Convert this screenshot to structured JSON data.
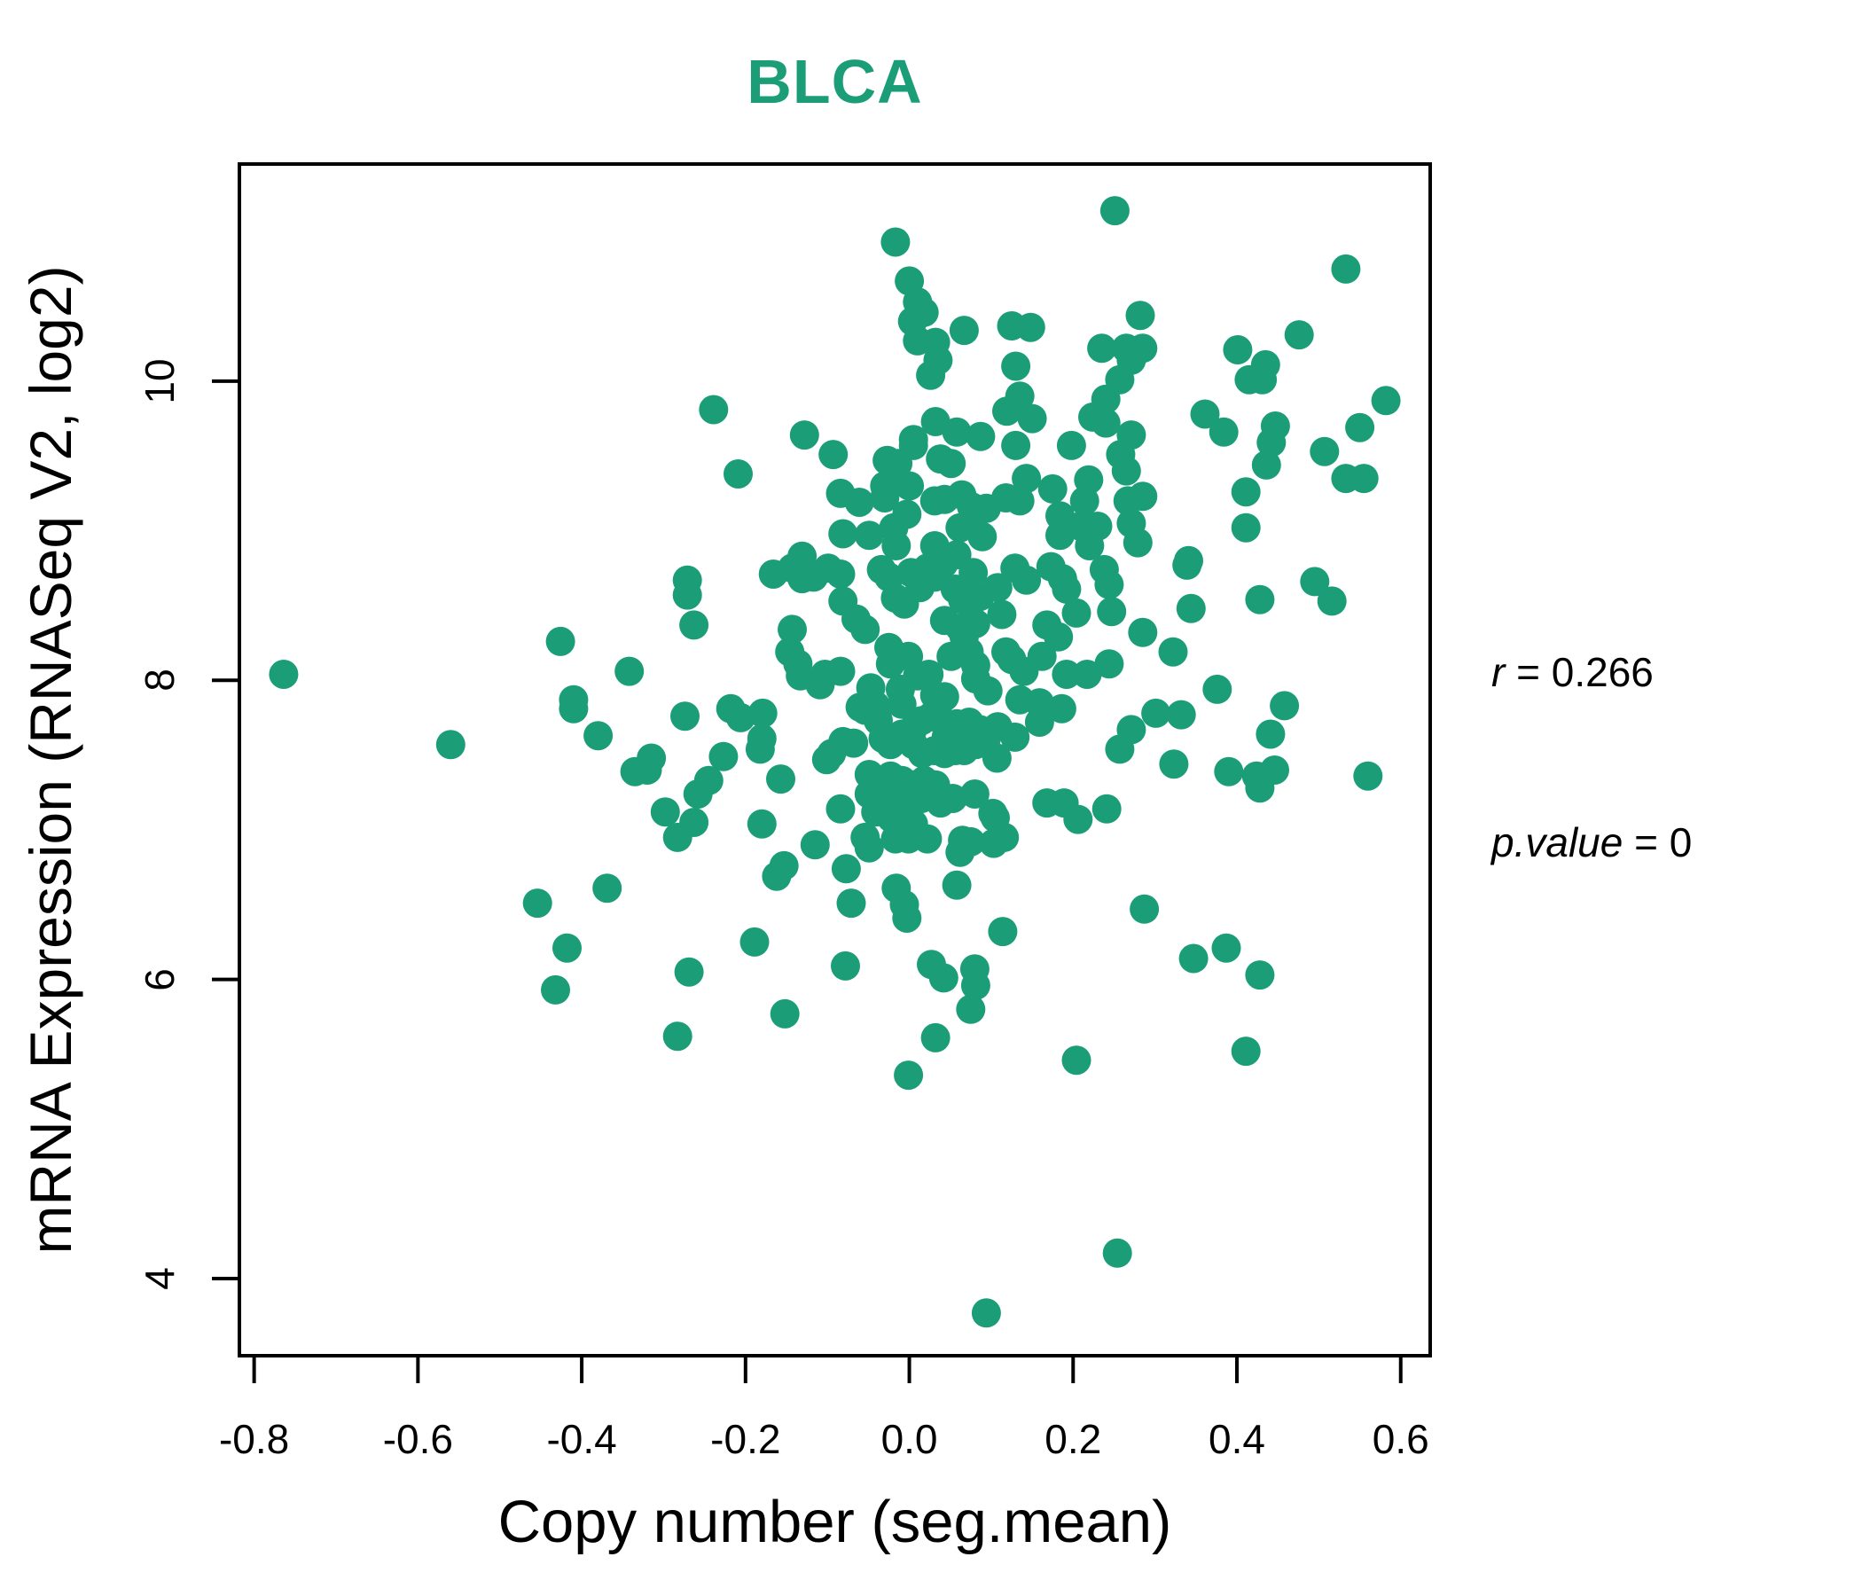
{
  "colors": {
    "accent_green": "#1B9E77",
    "axis_black": "#000000"
  },
  "annotation": {
    "r_label": "r",
    "r_eq": " = 0.266",
    "p_label": "p.value",
    "p_eq": " = 0"
  },
  "chart_data": {
    "type": "scatter",
    "title": "BLCA",
    "xlabel": "Copy number (seg.mean)",
    "ylabel": "mRNA Expression (RNASeq V2, log2)",
    "xlim": [
      -0.818,
      0.636
    ],
    "ylim": [
      3.484,
      11.452
    ],
    "x_ticks": [
      {
        "value": -0.8,
        "label": "-0.8"
      },
      {
        "value": -0.6,
        "label": "-0.6"
      },
      {
        "value": -0.4,
        "label": "-0.4"
      },
      {
        "value": -0.2,
        "label": "-0.2"
      },
      {
        "value": 0.0,
        "label": "0.0"
      },
      {
        "value": 0.2,
        "label": "0.2"
      },
      {
        "value": 0.4,
        "label": "0.4"
      },
      {
        "value": 0.6,
        "label": "0.6"
      }
    ],
    "y_ticks": [
      {
        "value": 4,
        "label": "4"
      },
      {
        "value": 6,
        "label": "6"
      },
      {
        "value": 8,
        "label": "8"
      },
      {
        "value": 10,
        "label": "10"
      }
    ],
    "grid": false,
    "legend_position": "none",
    "point_color": "#1B9E77",
    "point_radius_px": 16.5,
    "annotations_text": [
      "r = 0.266",
      "p.value = 0"
    ],
    "points": [
      [
        -0.017,
        10.93
      ],
      [
        0.0,
        10.67
      ],
      [
        0.01,
        10.53
      ],
      [
        0.018,
        10.46
      ],
      [
        0.004,
        10.4
      ],
      [
        0.01,
        10.27
      ],
      [
        0.032,
        10.26
      ],
      [
        0.067,
        10.34
      ],
      [
        0.125,
        10.37
      ],
      [
        0.148,
        10.36
      ],
      [
        0.035,
        10.14
      ],
      [
        0.026,
        10.04
      ],
      [
        0.13,
        10.1
      ],
      [
        0.135,
        9.9
      ],
      [
        0.119,
        9.8
      ],
      [
        0.15,
        9.75
      ],
      [
        -0.239,
        9.81
      ],
      [
        -0.128,
        9.64
      ],
      [
        -0.093,
        9.51
      ],
      [
        -0.209,
        9.38
      ],
      [
        0.005,
        9.61
      ],
      [
        0.032,
        9.73
      ],
      [
        0.058,
        9.66
      ],
      [
        0.087,
        9.63
      ],
      [
        0.005,
        9.57
      ],
      [
        0.038,
        9.48
      ],
      [
        0.051,
        9.45
      ],
      [
        -0.027,
        9.47
      ],
      [
        -0.014,
        9.45
      ],
      [
        0.13,
        9.57
      ],
      [
        0.143,
        9.35
      ],
      [
        0.0,
        9.3
      ],
      [
        -0.03,
        9.3
      ],
      [
        -0.084,
        9.25
      ],
      [
        -0.061,
        9.19
      ],
      [
        -0.03,
        9.22
      ],
      [
        -0.003,
        9.11
      ],
      [
        0.031,
        9.2
      ],
      [
        0.043,
        9.21
      ],
      [
        0.064,
        9.24
      ],
      [
        0.076,
        9.16
      ],
      [
        0.094,
        9.15
      ],
      [
        0.118,
        9.22
      ],
      [
        0.135,
        9.2
      ],
      [
        -0.081,
        8.98
      ],
      [
        -0.049,
        8.97
      ],
      [
        -0.019,
        9.02
      ],
      [
        -0.016,
        8.9
      ],
      [
        0.031,
        8.9
      ],
      [
        0.062,
        9.02
      ],
      [
        0.078,
        9.08
      ],
      [
        0.089,
        8.96
      ],
      [
        -0.131,
        8.83
      ],
      [
        0.058,
        8.84
      ],
      [
        0.251,
        11.14
      ],
      [
        0.533,
        10.75
      ],
      [
        0.282,
        10.44
      ],
      [
        0.235,
        10.22
      ],
      [
        0.265,
        10.22
      ],
      [
        0.285,
        10.22
      ],
      [
        0.271,
        10.14
      ],
      [
        0.401,
        10.21
      ],
      [
        0.476,
        10.31
      ],
      [
        0.435,
        10.11
      ],
      [
        0.415,
        10.01
      ],
      [
        0.431,
        10.01
      ],
      [
        0.257,
        10.01
      ],
      [
        0.24,
        9.88
      ],
      [
        0.224,
        9.76
      ],
      [
        0.24,
        9.72
      ],
      [
        0.582,
        9.87
      ],
      [
        0.361,
        9.78
      ],
      [
        0.384,
        9.66
      ],
      [
        0.447,
        9.7
      ],
      [
        0.55,
        9.69
      ],
      [
        0.442,
        9.59
      ],
      [
        0.507,
        9.53
      ],
      [
        0.436,
        9.44
      ],
      [
        0.198,
        9.57
      ],
      [
        0.271,
        9.64
      ],
      [
        0.258,
        9.51
      ],
      [
        0.265,
        9.4
      ],
      [
        0.533,
        9.35
      ],
      [
        0.555,
        9.35
      ],
      [
        0.219,
        9.34
      ],
      [
        0.175,
        9.28
      ],
      [
        0.411,
        9.26
      ],
      [
        0.214,
        9.2
      ],
      [
        0.267,
        9.2
      ],
      [
        0.285,
        9.23
      ],
      [
        0.184,
        9.1
      ],
      [
        0.184,
        8.97
      ],
      [
        0.209,
        9.03
      ],
      [
        0.23,
        9.03
      ],
      [
        0.411,
        9.02
      ],
      [
        0.271,
        9.05
      ],
      [
        0.279,
        8.92
      ],
      [
        0.22,
        8.9
      ],
      [
        0.341,
        8.8
      ],
      [
        -0.764,
        8.04
      ],
      [
        -0.426,
        8.26
      ],
      [
        -0.342,
        8.06
      ],
      [
        -0.41,
        7.87
      ],
      [
        -0.41,
        7.81
      ],
      [
        -0.38,
        7.63
      ],
      [
        -0.56,
        7.57
      ],
      [
        -0.335,
        7.39
      ],
      [
        -0.369,
        6.61
      ],
      [
        -0.454,
        6.51
      ],
      [
        -0.418,
        6.21
      ],
      [
        -0.271,
        8.67
      ],
      [
        -0.271,
        8.57
      ],
      [
        -0.263,
        8.37
      ],
      [
        -0.166,
        8.71
      ],
      [
        -0.143,
        8.75
      ],
      [
        -0.131,
        8.68
      ],
      [
        -0.117,
        8.69
      ],
      [
        -0.099,
        8.75
      ],
      [
        -0.084,
        8.71
      ],
      [
        -0.081,
        8.53
      ],
      [
        -0.065,
        8.41
      ],
      [
        -0.054,
        8.34
      ],
      [
        -0.034,
        8.74
      ],
      [
        -0.025,
        8.69
      ],
      [
        -0.017,
        8.55
      ],
      [
        -0.006,
        8.51
      ],
      [
        0.002,
        8.72
      ],
      [
        0.013,
        8.62
      ],
      [
        0.022,
        8.75
      ],
      [
        0.031,
        8.69
      ],
      [
        0.042,
        8.78
      ],
      [
        0.056,
        8.61
      ],
      [
        0.065,
        8.54
      ],
      [
        0.078,
        8.72
      ],
      [
        0.086,
        8.56
      ],
      [
        0.108,
        8.62
      ],
      [
        0.113,
        8.44
      ],
      [
        0.129,
        8.75
      ],
      [
        0.143,
        8.67
      ],
      [
        0.043,
        8.4
      ],
      [
        0.062,
        8.35
      ],
      [
        0.081,
        8.38
      ],
      [
        -0.143,
        8.34
      ],
      [
        -0.146,
        8.19
      ],
      [
        -0.136,
        8.11
      ],
      [
        -0.133,
        8.03
      ],
      [
        -0.109,
        7.97
      ],
      [
        -0.103,
        8.04
      ],
      [
        -0.084,
        8.06
      ],
      [
        -0.025,
        8.22
      ],
      [
        -0.023,
        8.11
      ],
      [
        -0.001,
        8.16
      ],
      [
        0.01,
        8.03
      ],
      [
        0.024,
        8.04
      ],
      [
        0.031,
        7.9
      ],
      [
        0.043,
        7.89
      ],
      [
        0.051,
        8.16
      ],
      [
        0.067,
        8.29
      ],
      [
        0.073,
        8.19
      ],
      [
        0.081,
        8.1
      ],
      [
        0.081,
        8.01
      ],
      [
        0.096,
        7.93
      ],
      [
        0.118,
        8.19
      ],
      [
        0.125,
        8.14
      ],
      [
        0.14,
        8.06
      ],
      [
        -0.047,
        7.95
      ],
      [
        -0.041,
        7.83
      ],
      [
        -0.038,
        7.73
      ],
      [
        -0.054,
        7.8
      ],
      [
        -0.06,
        7.82
      ],
      [
        -0.011,
        7.94
      ],
      [
        -0.009,
        7.84
      ],
      [
        0.004,
        7.67
      ],
      [
        0.015,
        7.73
      ],
      [
        0.027,
        7.76
      ],
      [
        0.04,
        7.73
      ],
      [
        0.045,
        7.62
      ],
      [
        0.058,
        7.71
      ],
      [
        0.073,
        7.72
      ],
      [
        0.086,
        7.67
      ],
      [
        0.092,
        7.65
      ],
      [
        0.108,
        7.69
      ],
      [
        0.129,
        7.62
      ],
      [
        0.135,
        7.87
      ],
      [
        -0.218,
        7.81
      ],
      [
        -0.206,
        7.75
      ],
      [
        -0.179,
        7.78
      ],
      [
        -0.18,
        7.61
      ],
      [
        -0.182,
        7.54
      ],
      [
        -0.274,
        7.76
      ],
      [
        -0.315,
        7.48
      ],
      [
        -0.32,
        7.4
      ],
      [
        -0.227,
        7.49
      ],
      [
        -0.245,
        7.33
      ],
      [
        -0.258,
        7.24
      ],
      [
        -0.095,
        7.51
      ],
      [
        -0.081,
        7.59
      ],
      [
        -0.068,
        7.58
      ],
      [
        -0.101,
        7.47
      ],
      [
        -0.032,
        7.61
      ],
      [
        -0.023,
        7.57
      ],
      [
        -0.009,
        7.64
      ],
      [
        0.005,
        7.57
      ],
      [
        0.016,
        7.51
      ],
      [
        0.031,
        7.53
      ],
      [
        0.043,
        7.51
      ],
      [
        0.056,
        7.53
      ],
      [
        0.067,
        7.53
      ],
      [
        0.081,
        7.57
      ],
      [
        0.094,
        7.61
      ],
      [
        0.107,
        7.48
      ],
      [
        -0.157,
        7.34
      ],
      [
        -0.049,
        7.37
      ],
      [
        -0.038,
        7.33
      ],
      [
        -0.023,
        7.36
      ],
      [
        -0.009,
        7.33
      ],
      [
        0.004,
        7.3
      ],
      [
        0.018,
        7.33
      ],
      [
        0.032,
        7.3
      ],
      [
        -0.049,
        7.24
      ],
      [
        -0.038,
        7.18
      ],
      [
        -0.025,
        7.18
      ],
      [
        -0.012,
        7.21
      ],
      [
        0.002,
        7.24
      ],
      [
        0.015,
        7.21
      ],
      [
        0.027,
        7.24
      ],
      [
        0.038,
        7.18
      ],
      [
        0.053,
        7.21
      ],
      [
        0.08,
        7.24
      ],
      [
        0.102,
        7.11
      ],
      [
        0.116,
        6.95
      ],
      [
        -0.298,
        7.12
      ],
      [
        -0.283,
        6.95
      ],
      [
        -0.263,
        7.05
      ],
      [
        -0.18,
        7.04
      ],
      [
        -0.084,
        7.14
      ],
      [
        -0.054,
        6.95
      ],
      [
        -0.041,
        7.12
      ],
      [
        -0.022,
        7.08
      ],
      [
        -0.006,
        7.08
      ],
      [
        0.005,
        7.04
      ],
      [
        0.022,
        6.94
      ],
      [
        -0.049,
        6.88
      ],
      [
        -0.017,
        6.94
      ],
      [
        -0.001,
        6.94
      ],
      [
        -0.115,
        6.9
      ],
      [
        -0.153,
        6.76
      ],
      [
        -0.162,
        6.69
      ],
      [
        -0.077,
        6.74
      ],
      [
        -0.071,
        6.51
      ],
      [
        -0.016,
        6.61
      ],
      [
        -0.006,
        6.5
      ],
      [
        -0.003,
        6.41
      ],
      [
        0.058,
        6.63
      ],
      [
        0.065,
        6.93
      ],
      [
        0.075,
        6.92
      ],
      [
        0.062,
        6.85
      ],
      [
        0.105,
        7.08
      ],
      [
        0.103,
        6.91
      ],
      [
        0.114,
        6.32
      ],
      [
        -0.189,
        6.25
      ],
      [
        0.173,
        8.76
      ],
      [
        0.187,
        8.68
      ],
      [
        0.192,
        8.61
      ],
      [
        0.238,
        8.74
      ],
      [
        0.244,
        8.64
      ],
      [
        0.339,
        8.77
      ],
      [
        0.204,
        8.45
      ],
      [
        0.247,
        8.46
      ],
      [
        0.168,
        8.37
      ],
      [
        0.182,
        8.29
      ],
      [
        0.162,
        8.16
      ],
      [
        0.428,
        8.54
      ],
      [
        0.495,
        8.66
      ],
      [
        0.516,
        8.53
      ],
      [
        0.344,
        8.48
      ],
      [
        0.285,
        8.32
      ],
      [
        0.322,
        8.19
      ],
      [
        0.244,
        8.11
      ],
      [
        0.192,
        8.04
      ],
      [
        0.217,
        8.04
      ],
      [
        0.159,
        7.85
      ],
      [
        0.186,
        7.81
      ],
      [
        0.159,
        7.72
      ],
      [
        0.376,
        7.94
      ],
      [
        0.301,
        7.78
      ],
      [
        0.332,
        7.77
      ],
      [
        0.271,
        7.67
      ],
      [
        0.257,
        7.54
      ],
      [
        0.458,
        7.83
      ],
      [
        0.441,
        7.64
      ],
      [
        0.323,
        7.44
      ],
      [
        0.39,
        7.39
      ],
      [
        0.446,
        7.4
      ],
      [
        0.424,
        7.36
      ],
      [
        0.428,
        7.28
      ],
      [
        0.56,
        7.36
      ],
      [
        0.168,
        7.18
      ],
      [
        0.189,
        7.18
      ],
      [
        0.206,
        7.07
      ],
      [
        0.241,
        7.14
      ],
      [
        0.287,
        6.47
      ],
      [
        0.387,
        6.21
      ],
      [
        0.347,
        6.14
      ],
      [
        -0.432,
        5.93
      ],
      [
        -0.269,
        6.05
      ],
      [
        -0.078,
        6.09
      ],
      [
        0.027,
        6.1
      ],
      [
        0.042,
        6.01
      ],
      [
        0.08,
        6.07
      ],
      [
        0.081,
        5.96
      ],
      [
        -0.152,
        5.77
      ],
      [
        0.075,
        5.8
      ],
      [
        -0.283,
        5.62
      ],
      [
        0.032,
        5.61
      ],
      [
        -0.001,
        5.36
      ],
      [
        0.094,
        3.77
      ],
      [
        0.428,
        6.03
      ],
      [
        0.204,
        5.46
      ],
      [
        0.411,
        5.52
      ],
      [
        0.254,
        4.17
      ]
    ]
  }
}
